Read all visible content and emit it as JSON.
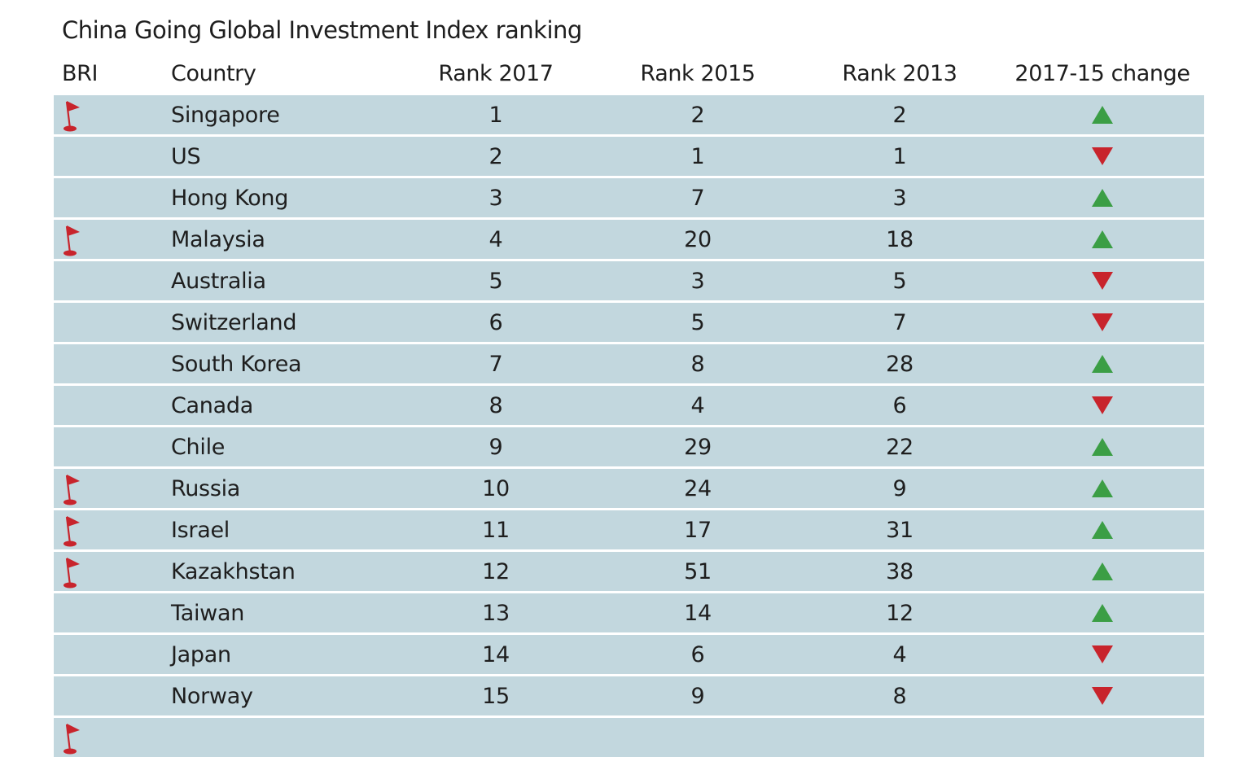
{
  "title": "China Going Global Investment Index ranking",
  "header": {
    "bri": "BRI",
    "country": "Country",
    "rank2017": "Rank 2017",
    "rank2015": "Rank 2015",
    "rank2013": "Rank 2013",
    "change": "2017-15 change"
  },
  "colors": {
    "row_background": "#c2d7de",
    "up": "#3b9e45",
    "down": "#c8242c",
    "flag": "#c8242c"
  },
  "chart_data": {
    "type": "table",
    "title": "China Going Global Investment Index ranking",
    "columns": [
      "BRI",
      "Country",
      "Rank 2017",
      "Rank 2015",
      "Rank 2013",
      "2017-15 change"
    ],
    "rows": [
      {
        "bri": true,
        "country": "Singapore",
        "rank2017": 1,
        "rank2015": 2,
        "rank2013": 2,
        "change": "up"
      },
      {
        "bri": false,
        "country": "US",
        "rank2017": 2,
        "rank2015": 1,
        "rank2013": 1,
        "change": "down"
      },
      {
        "bri": false,
        "country": "Hong Kong",
        "rank2017": 3,
        "rank2015": 7,
        "rank2013": 3,
        "change": "up"
      },
      {
        "bri": true,
        "country": "Malaysia",
        "rank2017": 4,
        "rank2015": 20,
        "rank2013": 18,
        "change": "up"
      },
      {
        "bri": false,
        "country": "Australia",
        "rank2017": 5,
        "rank2015": 3,
        "rank2013": 5,
        "change": "down"
      },
      {
        "bri": false,
        "country": "Switzerland",
        "rank2017": 6,
        "rank2015": 5,
        "rank2013": 7,
        "change": "down"
      },
      {
        "bri": false,
        "country": "South Korea",
        "rank2017": 7,
        "rank2015": 8,
        "rank2013": 28,
        "change": "up"
      },
      {
        "bri": false,
        "country": "Canada",
        "rank2017": 8,
        "rank2015": 4,
        "rank2013": 6,
        "change": "down"
      },
      {
        "bri": false,
        "country": "Chile",
        "rank2017": 9,
        "rank2015": 29,
        "rank2013": 22,
        "change": "up"
      },
      {
        "bri": true,
        "country": "Russia",
        "rank2017": 10,
        "rank2015": 24,
        "rank2013": 9,
        "change": "up"
      },
      {
        "bri": true,
        "country": "Israel",
        "rank2017": 11,
        "rank2015": 17,
        "rank2013": 31,
        "change": "up"
      },
      {
        "bri": true,
        "country": "Kazakhstan",
        "rank2017": 12,
        "rank2015": 51,
        "rank2013": 38,
        "change": "up"
      },
      {
        "bri": false,
        "country": "Taiwan",
        "rank2017": 13,
        "rank2015": 14,
        "rank2013": 12,
        "change": "up"
      },
      {
        "bri": false,
        "country": "Japan",
        "rank2017": 14,
        "rank2015": 6,
        "rank2013": 4,
        "change": "down"
      },
      {
        "bri": false,
        "country": "Norway",
        "rank2017": 15,
        "rank2015": 9,
        "rank2013": 8,
        "change": "down"
      }
    ],
    "partial_row_bri": true
  }
}
